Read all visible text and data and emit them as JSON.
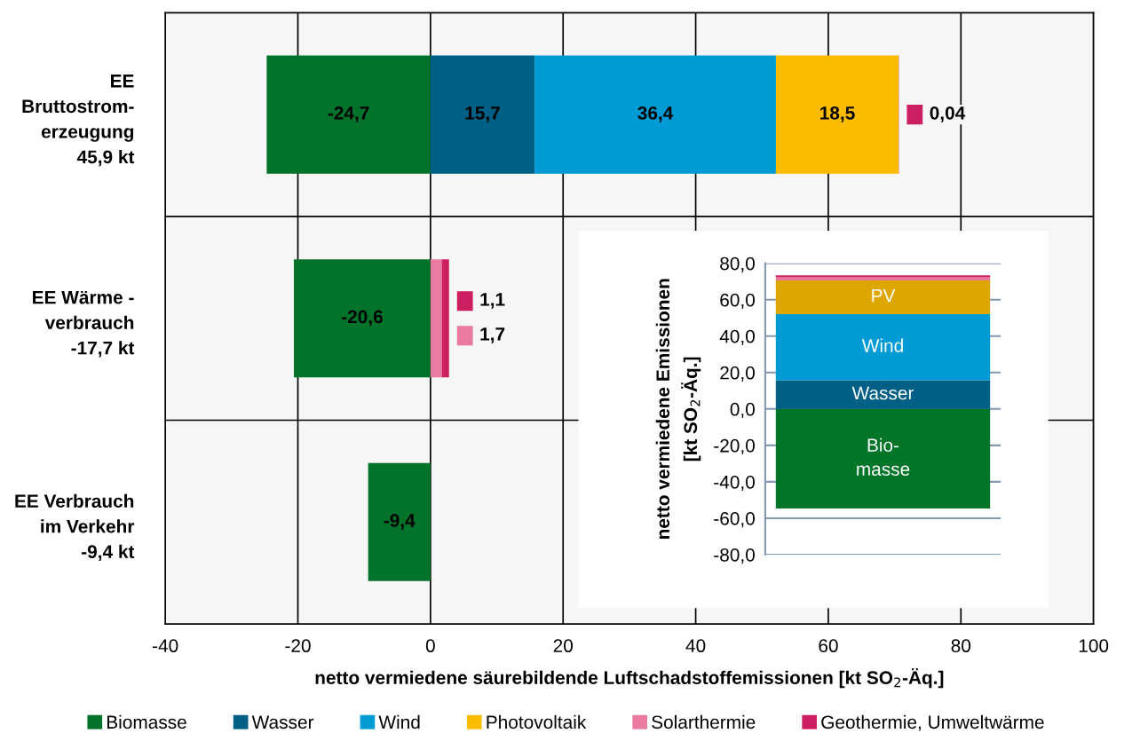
{
  "chart_data": [
    {
      "type": "bar",
      "orientation": "horizontal",
      "stacked": true,
      "categories": [
        "EE\nBruttostrom-\nerzeugung\n45,9 kt",
        "EE Wärme -\nverbrauch\n-17,7 kt",
        "EE Verbrauch\nim Verkehr\n-9,4 kt"
      ],
      "xlabel": "netto vermiedene säurebildende Luftschadstoffemissionen [kt SO$_{2}$-Äq.]",
      "xlim": [
        -40,
        100
      ],
      "xticks": [
        -40,
        -20,
        0,
        20,
        40,
        60,
        80,
        100
      ],
      "grid": true,
      "legend": "bottom",
      "series": [
        {
          "name": "Biomasse",
          "color": "#03722a",
          "values": [
            -24.7,
            -20.6,
            -9.4
          ],
          "value_labels": [
            "-24,7",
            "-20,6",
            "-9,4"
          ]
        },
        {
          "name": "Wasser",
          "color": "#005f85",
          "values": [
            15.7,
            null,
            null
          ],
          "value_labels": [
            "15,7",
            null,
            null
          ]
        },
        {
          "name": "Wind",
          "color": "#009ad5",
          "values": [
            36.4,
            null,
            null
          ],
          "value_labels": [
            "36,4",
            null,
            null
          ]
        },
        {
          "name": "Photovoltaik",
          "color": "#fabb00",
          "values": [
            18.5,
            null,
            null
          ],
          "value_labels": [
            "18,5",
            null,
            null
          ]
        },
        {
          "name": "Solarthermie",
          "color": "#ea7a9f",
          "values": [
            null,
            1.7,
            null
          ],
          "value_labels": [
            null,
            "1,7",
            null
          ]
        },
        {
          "name": "Geothermie, Umweltwärme",
          "color": "#cc1f5f",
          "values": [
            0.04,
            1.1,
            null
          ],
          "value_labels": [
            "0,04",
            "1,1",
            null
          ]
        }
      ]
    },
    {
      "type": "bar",
      "stacked": true,
      "categories": [
        null
      ],
      "ylabel": "netto vermiedene Emissionen\n[kt SO$_{2}$-Äq.]",
      "ylim": [
        -80,
        80
      ],
      "yticks": [
        {
          "value": -80,
          "label": "-80,0"
        },
        {
          "value": -60,
          "label": "-60,0"
        },
        {
          "value": -40,
          "label": "-40,0"
        },
        {
          "value": -20,
          "label": "-20,0"
        },
        {
          "value": 0,
          "label": "0,0"
        },
        {
          "value": 20,
          "label": "20,0"
        },
        {
          "value": 40,
          "label": "40,0"
        },
        {
          "value": 60,
          "label": "60,0"
        },
        {
          "value": 80,
          "label": "80,0"
        }
      ],
      "grid": "y",
      "tick_labels": "y",
      "series": [
        {
          "name": "Bio-\nmasse",
          "color": "#037529",
          "values": [
            -54.7
          ]
        },
        {
          "name": "Wasser",
          "color": "#005f85",
          "values": [
            15.7
          ]
        },
        {
          "name": "Wind",
          "color": "#009bd5",
          "values": [
            36.4
          ]
        },
        {
          "name": "PV",
          "color": "#dea600",
          "values": [
            18.5
          ]
        },
        {
          "color": "#e8739c",
          "values": [
            1.7
          ]
        },
        {
          "color": "#ce1f5e",
          "values": [
            1.1
          ]
        }
      ]
    }
  ]
}
